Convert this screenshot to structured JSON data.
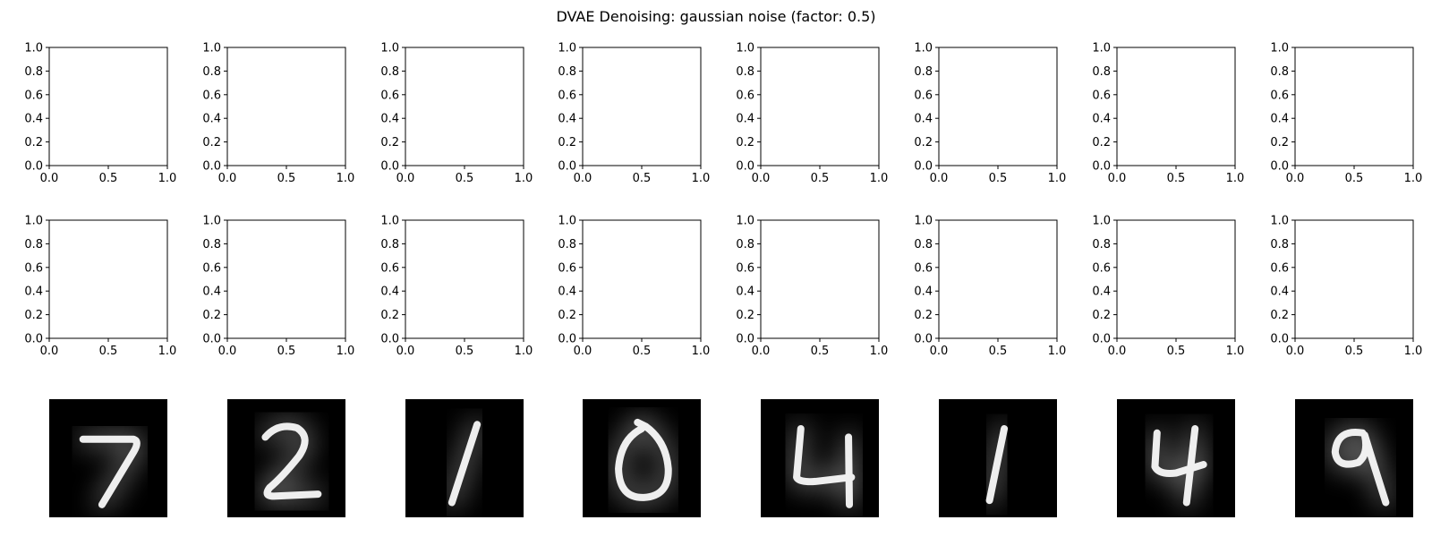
{
  "figure": {
    "title": "DVAE Denoising: gaussian noise (factor: 0.5)"
  },
  "chart_data": {
    "type": "image-grid",
    "title": "DVAE Denoising: gaussian noise (factor: 0.5)",
    "rows": 3,
    "cols": 8,
    "empty_axes_rows": 2,
    "xlim": [
      0.0,
      1.0
    ],
    "ylim": [
      0.0,
      1.0
    ],
    "x_ticks": [
      "0.0",
      "0.5",
      "1.0"
    ],
    "y_ticks": [
      "0.0",
      "0.2",
      "0.4",
      "0.6",
      "0.8",
      "1.0"
    ],
    "x_tick_values": [
      0.0,
      0.5,
      1.0
    ],
    "y_tick_values": [
      0.0,
      0.2,
      0.4,
      0.6,
      0.8,
      1.0
    ],
    "images_row": 3,
    "image_digits": [
      "7",
      "2",
      "1",
      "0",
      "4",
      "1",
      "4",
      "9"
    ],
    "image_style": "white digit on black background (grayscale, blurred reconstruction)",
    "colors": {
      "background": "#000000",
      "stroke": "#ffffff",
      "axes": "#000000"
    }
  }
}
